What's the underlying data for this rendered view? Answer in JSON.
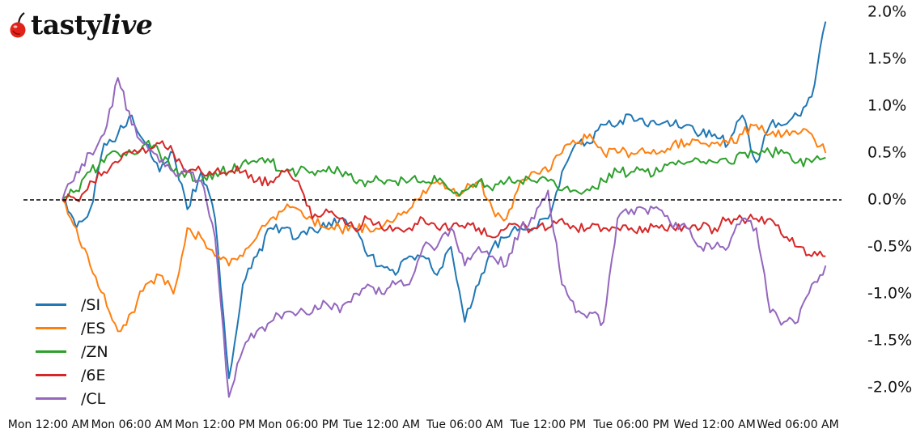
{
  "brand": {
    "name_bold": "tasty",
    "name_italic": "live",
    "cherry_color": "#e2231a"
  },
  "chart_data": {
    "type": "line",
    "title": "",
    "xlabel": "",
    "ylabel": "",
    "ylim": [
      -2.0,
      2.0
    ],
    "y_tick_labels": [
      "2.0%",
      "1.5%",
      "1.0%",
      "0.5%",
      "0.0%",
      "-0.5%",
      "-1.0%",
      "-1.5%",
      "-2.0%"
    ],
    "y_ticks": [
      2.0,
      1.5,
      1.0,
      0.5,
      0.0,
      -0.5,
      -1.0,
      -1.5,
      -2.0
    ],
    "x_tick_labels": [
      "Mon 12:00 AM",
      "Mon 06:00 AM",
      "Mon 12:00 PM",
      "Mon 06:00 PM",
      "Tue 12:00 AM",
      "Tue 06:00 AM",
      "Tue 12:00 PM",
      "Tue 06:00 PM",
      "Wed 12:00 AM",
      "Wed 06:00 AM"
    ],
    "x_unit": "hours since Mon 12:00 AM",
    "x_ticks_hours": [
      0,
      6,
      12,
      18,
      24,
      30,
      36,
      42,
      48,
      54
    ],
    "reference_line": {
      "y": 0.0,
      "style": "dashed",
      "color": "#000000"
    },
    "grid": false,
    "legend_position": "lower left",
    "x": [
      1.0,
      2.0,
      3.0,
      4.0,
      5.0,
      6.0,
      7.0,
      8.0,
      9.0,
      10.0,
      11.0,
      12.0,
      13.0,
      14.0,
      15.0,
      16.0,
      17.0,
      18.0,
      19.0,
      20.0,
      21.0,
      22.0,
      23.0,
      24.0,
      25.0,
      26.0,
      27.0,
      28.0,
      29.0,
      30.0,
      31.0,
      32.0,
      33.0,
      34.0,
      35.0,
      36.0,
      37.0,
      38.0,
      39.0,
      40.0,
      41.0,
      42.0,
      43.0,
      44.0,
      45.0,
      46.0,
      47.0,
      48.0,
      49.0,
      50.0,
      51.0,
      52.0,
      53.0,
      54.0,
      55.0,
      56.0
    ],
    "series": [
      {
        "name": "/SI",
        "color": "#1f77b4",
        "values": [
          0.0,
          -0.3,
          -0.1,
          0.6,
          0.7,
          0.9,
          0.6,
          0.3,
          0.5,
          -0.1,
          0.3,
          -0.2,
          -1.9,
          -0.9,
          -0.6,
          -0.3,
          -0.3,
          -0.4,
          -0.3,
          -0.3,
          -0.2,
          -0.3,
          -0.6,
          -0.7,
          -0.8,
          -0.6,
          -0.6,
          -0.8,
          -0.5,
          -1.3,
          -0.9,
          -0.5,
          -0.4,
          -0.3,
          -0.3,
          -0.2,
          0.3,
          0.6,
          0.6,
          0.8,
          0.8,
          0.9,
          0.8,
          0.8,
          0.8,
          0.8,
          0.7,
          0.7,
          0.6,
          0.9,
          0.4,
          0.8,
          0.8,
          0.9,
          1.1,
          1.9
        ]
      },
      {
        "name": "/ES",
        "color": "#ff7f0e",
        "values": [
          0.0,
          -0.3,
          -0.7,
          -1.0,
          -1.4,
          -1.2,
          -0.9,
          -0.8,
          -1.0,
          -0.3,
          -0.4,
          -0.6,
          -0.7,
          -0.6,
          -0.4,
          -0.2,
          -0.1,
          -0.1,
          -0.2,
          -0.3,
          -0.3,
          -0.3,
          -0.3,
          -0.3,
          -0.2,
          -0.1,
          0.1,
          0.2,
          0.1,
          0.1,
          0.2,
          -0.1,
          -0.2,
          0.2,
          0.3,
          0.3,
          0.5,
          0.6,
          0.7,
          0.5,
          0.5,
          0.5,
          0.5,
          0.5,
          0.6,
          0.6,
          0.6,
          0.6,
          0.6,
          0.7,
          0.8,
          0.7,
          0.7,
          0.7,
          0.7,
          0.5
        ]
      },
      {
        "name": "/ZN",
        "color": "#2ca02c",
        "values": [
          0.0,
          0.1,
          0.3,
          0.4,
          0.5,
          0.5,
          0.6,
          0.5,
          0.3,
          0.3,
          0.2,
          0.3,
          0.3,
          0.4,
          0.4,
          0.4,
          0.3,
          0.3,
          0.3,
          0.3,
          0.3,
          0.2,
          0.2,
          0.2,
          0.2,
          0.2,
          0.2,
          0.2,
          0.1,
          0.1,
          0.2,
          0.1,
          0.2,
          0.2,
          0.2,
          0.2,
          0.1,
          0.1,
          0.1,
          0.2,
          0.3,
          0.3,
          0.3,
          0.3,
          0.4,
          0.4,
          0.4,
          0.4,
          0.4,
          0.5,
          0.5,
          0.5,
          0.5,
          0.4,
          0.4,
          0.45
        ]
      },
      {
        "name": "/6E",
        "color": "#d62728",
        "values": [
          0.0,
          0.0,
          0.2,
          0.3,
          0.4,
          0.5,
          0.5,
          0.6,
          0.5,
          0.3,
          0.3,
          0.3,
          0.3,
          0.3,
          0.2,
          0.2,
          0.3,
          0.2,
          -0.2,
          -0.1,
          -0.2,
          -0.3,
          -0.2,
          -0.3,
          -0.3,
          -0.3,
          -0.2,
          -0.3,
          -0.3,
          -0.3,
          -0.3,
          -0.4,
          -0.3,
          -0.3,
          -0.3,
          -0.3,
          -0.2,
          -0.3,
          -0.3,
          -0.3,
          -0.3,
          -0.3,
          -0.3,
          -0.3,
          -0.3,
          -0.3,
          -0.3,
          -0.3,
          -0.2,
          -0.2,
          -0.2,
          -0.2,
          -0.4,
          -0.5,
          -0.6,
          -0.6
        ]
      },
      {
        "name": "/CL",
        "color": "#9467bd",
        "values": [
          0.0,
          0.3,
          0.5,
          0.7,
          1.3,
          0.8,
          0.6,
          0.4,
          0.3,
          0.3,
          0.2,
          -0.4,
          -2.1,
          -1.6,
          -1.4,
          -1.3,
          -1.2,
          -1.2,
          -1.2,
          -1.1,
          -1.2,
          -1.0,
          -0.9,
          -1.0,
          -0.9,
          -0.9,
          -0.5,
          -0.5,
          -0.3,
          -0.7,
          -0.5,
          -0.6,
          -0.7,
          -0.3,
          -0.2,
          0.1,
          -0.9,
          -1.2,
          -1.2,
          -1.3,
          -0.2,
          -0.1,
          -0.1,
          -0.1,
          -0.3,
          -0.3,
          -0.5,
          -0.5,
          -0.5,
          -0.2,
          -0.3,
          -1.2,
          -1.3,
          -1.3,
          -0.9,
          -0.7
        ]
      }
    ]
  }
}
